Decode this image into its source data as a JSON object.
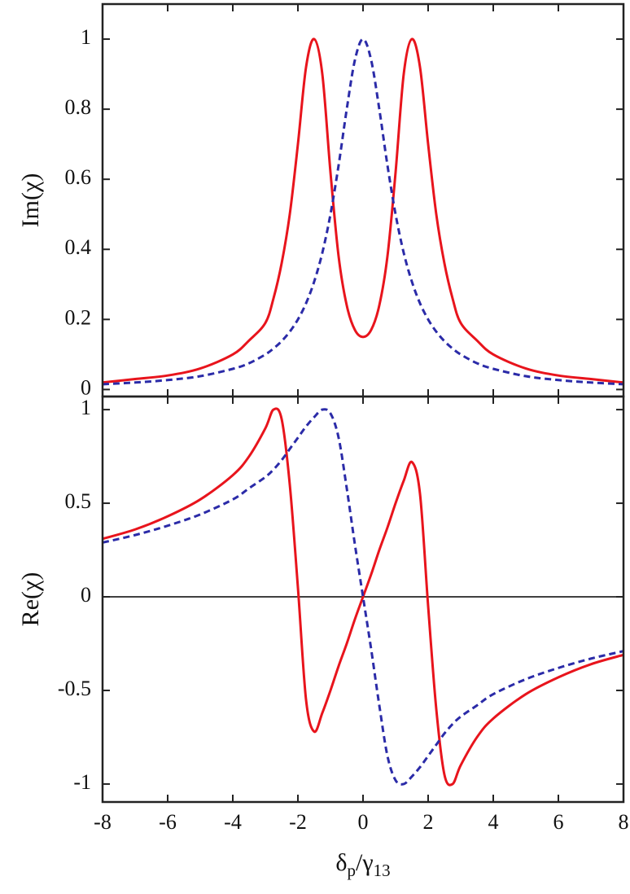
{
  "chart_data": [
    {
      "type": "line",
      "ylabel": "Im(χ)",
      "x": [
        -8,
        -7,
        -6,
        -5,
        -4,
        -3.5,
        -3,
        -2.75,
        -2.5,
        -2.25,
        -2,
        -1.75,
        -1.5,
        -1.25,
        -1,
        -0.75,
        -0.5,
        -0.25,
        0,
        0.25,
        0.5,
        0.75,
        1,
        1.25,
        1.5,
        1.75,
        2,
        2.25,
        2.5,
        2.75,
        3,
        3.5,
        4,
        5,
        6,
        7,
        8
      ],
      "xlim": [
        -8,
        8
      ],
      "xticks": [
        -8,
        -6,
        -4,
        -2,
        0,
        2,
        4,
        6,
        8
      ],
      "show_xtick_labels": false,
      "ylim": [
        -0.02,
        1.1
      ],
      "yticks": [
        0,
        0.2,
        0.4,
        0.6,
        0.8,
        1
      ],
      "zero_line": false,
      "series": [
        {
          "color": "#e8141c",
          "dashed": false,
          "values": [
            0.02,
            0.03,
            0.04,
            0.06,
            0.1,
            0.14,
            0.19,
            0.26,
            0.36,
            0.5,
            0.7,
            0.92,
            1,
            0.9,
            0.62,
            0.38,
            0.24,
            0.17,
            0.15,
            0.17,
            0.24,
            0.38,
            0.62,
            0.9,
            1,
            0.92,
            0.7,
            0.5,
            0.36,
            0.26,
            0.19,
            0.14,
            0.1,
            0.06,
            0.04,
            0.03,
            0.02
          ]
        },
        {
          "color": "#2b2ba8",
          "dashed": true,
          "values": [
            0.015,
            0.02,
            0.027,
            0.038,
            0.059,
            0.075,
            0.1,
            0.117,
            0.138,
            0.165,
            0.2,
            0.246,
            0.308,
            0.39,
            0.5,
            0.64,
            0.8,
            0.94,
            1,
            0.94,
            0.8,
            0.64,
            0.5,
            0.39,
            0.308,
            0.246,
            0.2,
            0.165,
            0.138,
            0.117,
            0.1,
            0.075,
            0.059,
            0.038,
            0.027,
            0.02,
            0.015
          ]
        }
      ]
    },
    {
      "type": "line",
      "ylabel": "Re(χ)",
      "xlabel": [
        "δ",
        "p",
        "/γ",
        "13"
      ],
      "x": [
        -8,
        -7,
        -6,
        -5,
        -4,
        -3.5,
        -3,
        -2.75,
        -2.5,
        -2.25,
        -2,
        -1.75,
        -1.5,
        -1.25,
        -1,
        -0.75,
        -0.5,
        -0.25,
        0,
        0.25,
        0.5,
        0.75,
        1,
        1.25,
        1.5,
        1.75,
        2,
        2.25,
        2.5,
        2.75,
        3,
        3.5,
        4,
        5,
        6,
        7,
        8
      ],
      "xlim": [
        -8,
        8
      ],
      "xticks": [
        -8,
        -6,
        -4,
        -2,
        0,
        2,
        4,
        6,
        8
      ],
      "show_xtick_labels": true,
      "ylim": [
        -1.096,
        1.07
      ],
      "yticks": [
        -1,
        -0.5,
        0,
        0.5,
        1
      ],
      "zero_line": true,
      "series": [
        {
          "color": "#e8141c",
          "dashed": false,
          "values": [
            0.31,
            0.36,
            0.43,
            0.52,
            0.65,
            0.75,
            0.9,
            1,
            0.95,
            0.6,
            0.05,
            -0.55,
            -0.72,
            -0.62,
            -0.5,
            -0.37,
            -0.25,
            -0.12,
            0,
            0.12,
            0.25,
            0.37,
            0.5,
            0.62,
            0.72,
            0.55,
            -0.05,
            -0.6,
            -0.95,
            -1,
            -0.9,
            -0.75,
            -0.65,
            -0.52,
            -0.43,
            -0.36,
            -0.31
          ]
        },
        {
          "color": "#2b2ba8",
          "dashed": true,
          "values": [
            0.29,
            0.33,
            0.38,
            0.44,
            0.52,
            0.58,
            0.64,
            0.68,
            0.73,
            0.79,
            0.85,
            0.91,
            0.96,
            1,
            0.98,
            0.85,
            0.58,
            0.28,
            0,
            -0.28,
            -0.58,
            -0.85,
            -0.98,
            -1,
            -0.96,
            -0.91,
            -0.85,
            -0.79,
            -0.73,
            -0.68,
            -0.64,
            -0.58,
            -0.52,
            -0.44,
            -0.38,
            -0.33,
            -0.29
          ]
        }
      ]
    }
  ]
}
